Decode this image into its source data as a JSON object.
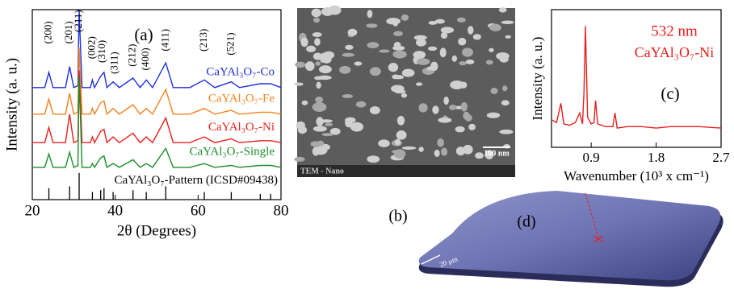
{
  "chart_data": [
    {
      "type": "line",
      "panel_label": "(a)",
      "xlabel": "2θ (Degrees)",
      "ylabel": "Intensity (a. u.)",
      "xlim": [
        20,
        80
      ],
      "xticks": [
        20,
        40,
        60,
        80
      ],
      "ylim": [
        0,
        100
      ],
      "x": [
        20,
        23,
        24,
        25,
        28,
        29,
        30,
        31,
        31.3,
        32,
        34,
        34.5,
        35,
        36.5,
        37.3,
        38,
        39.5,
        41,
        44.3,
        46,
        47.5,
        49,
        52.2,
        54,
        58,
        61.5,
        64,
        68,
        70,
        75,
        77.5,
        80
      ],
      "series": [
        {
          "name": "CaYAl₃O₇-Co",
          "color": "#1f2fe0",
          "values": [
            59,
            59,
            67,
            59,
            59,
            70,
            59,
            60,
            100,
            59,
            59,
            63,
            59,
            65,
            67,
            59,
            62,
            59,
            64,
            59,
            63,
            59,
            72,
            59,
            59,
            63,
            59,
            62,
            59,
            61,
            61,
            59
          ]
        },
        {
          "name": "CaYAl₃O₇-Fe",
          "color": "#f5821f",
          "values": [
            45,
            45,
            53,
            45,
            45,
            56,
            45,
            46,
            80,
            45,
            45,
            48,
            45,
            51,
            52,
            45,
            48,
            45,
            50,
            45,
            48,
            45,
            58,
            45,
            45,
            48,
            45,
            47,
            45,
            46,
            46,
            45
          ]
        },
        {
          "name": "CaYAl₃O₇-Ni",
          "color": "#e8201c",
          "values": [
            30,
            30,
            38,
            30,
            30,
            45,
            30,
            31,
            68,
            30,
            30,
            33,
            30,
            36,
            37,
            30,
            33,
            30,
            35,
            30,
            33,
            30,
            43,
            30,
            30,
            33,
            30,
            32,
            30,
            31,
            31,
            30
          ]
        },
        {
          "name": "CaYAl₃O₇-Single",
          "color": "#1e8c28",
          "values": [
            17,
            17,
            24,
            17,
            17,
            25,
            17,
            18,
            65,
            17,
            17,
            19,
            17,
            22,
            23,
            17,
            19,
            17,
            21,
            17,
            19,
            17,
            27,
            17,
            17,
            19,
            17,
            18,
            17,
            18,
            18,
            17
          ]
        },
        {
          "name": "CaYAl₃O₇-Pattern (ICSD#09438)",
          "color": "#000000",
          "style": "stick",
          "x": [
            24,
            29,
            31.3,
            34.5,
            36.5,
            37.3,
            39.5,
            44.3,
            47.5,
            52.2,
            61.5,
            68,
            75,
            77.5
          ],
          "values": [
            6,
            7,
            14,
            4,
            5,
            6,
            4,
            5,
            4,
            7,
            4,
            4,
            3,
            3
          ]
        }
      ],
      "peak_labels": [
        {
          "text": "(200)",
          "x": 24,
          "y": 88
        },
        {
          "text": "(201)",
          "x": 29,
          "y": 88
        },
        {
          "text": "(211)",
          "x": 31.3,
          "y": 94
        },
        {
          "text": "(002)",
          "x": 34.5,
          "y": 80
        },
        {
          "text": "(310)",
          "x": 37,
          "y": 78
        },
        {
          "text": "(311)",
          "x": 40,
          "y": 72
        },
        {
          "text": "(212)",
          "x": 44.3,
          "y": 76
        },
        {
          "text": "(400)",
          "x": 47.5,
          "y": 74
        },
        {
          "text": "(411)",
          "x": 52.2,
          "y": 84
        },
        {
          "text": "(213)",
          "x": 61.5,
          "y": 84
        },
        {
          "text": "(521)",
          "x": 68,
          "y": 82
        }
      ]
    },
    {
      "type": "line",
      "panel_label": "(c)",
      "annotation": "532 nm",
      "xlabel": "Wavenumber (10³ x cm⁻¹)",
      "ylabel": "Intensity (a. u.)",
      "xlim": [
        0.35,
        2.7
      ],
      "xticks": [
        0.9,
        1.8,
        2.7
      ],
      "ylim": [
        0,
        100
      ],
      "x": [
        0.35,
        0.42,
        0.48,
        0.52,
        0.6,
        0.68,
        0.74,
        0.78,
        0.8,
        0.82,
        0.85,
        0.9,
        0.94,
        0.96,
        0.99,
        1.1,
        1.2,
        1.23,
        1.26,
        1.4,
        1.6,
        1.8,
        2.0,
        2.2,
        2.4,
        2.7
      ],
      "series": [
        {
          "name": "CaYAl₃O₇-Ni",
          "color": "#e8201c",
          "values": [
            20,
            18,
            32,
            17,
            16,
            18,
            25,
            17,
            40,
            88,
            22,
            17,
            18,
            34,
            17,
            15,
            15,
            25,
            14,
            15,
            15,
            14,
            15,
            15,
            15,
            14
          ]
        }
      ]
    }
  ],
  "tem": {
    "label": "(b)",
    "scale_bar": "100 nm",
    "caption": "TEM - Nano"
  },
  "plate": {
    "label": "(d)",
    "scale_bar": "20 μm"
  }
}
